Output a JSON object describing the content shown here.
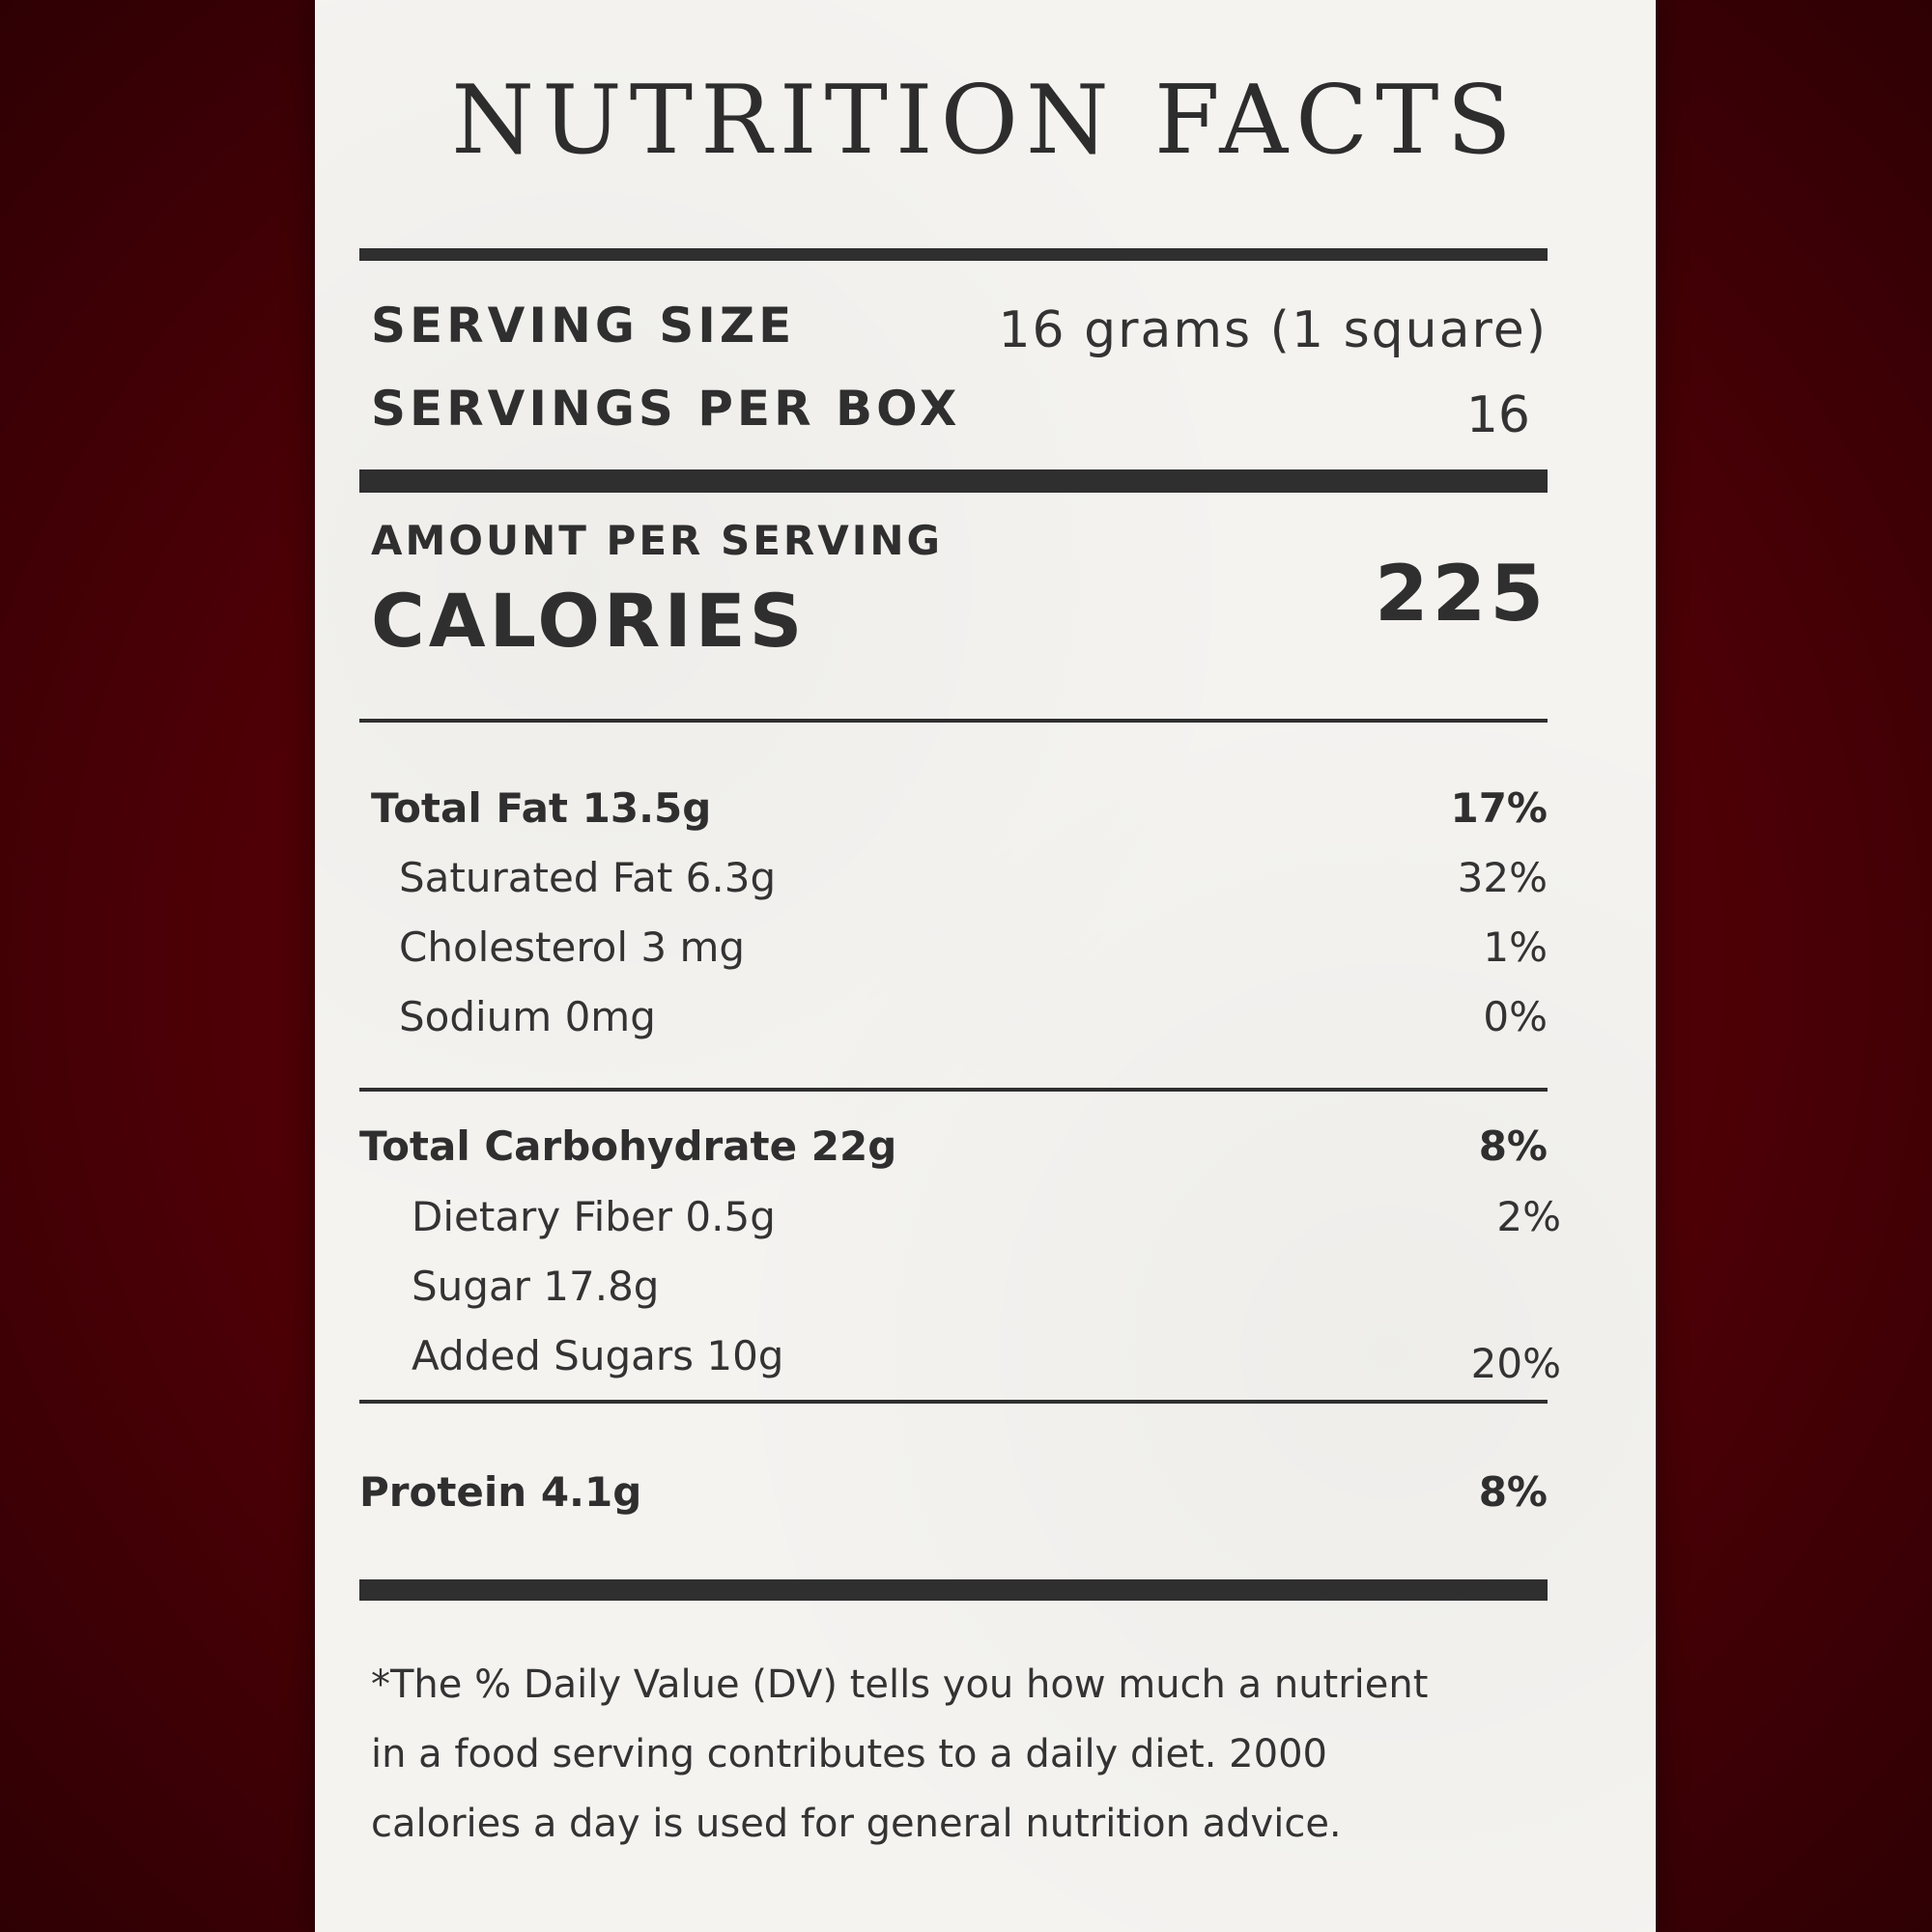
{
  "title": "NUTRITION FACTS",
  "serving": {
    "size_label": "SERVING SIZE",
    "size_value": "16 grams (1 square)",
    "per_box_label": "SERVINGS PER BOX",
    "per_box_value": "16"
  },
  "calories": {
    "amount_label": "AMOUNT PER SERVING",
    "label": "CALORIES",
    "value": "225"
  },
  "nutrients": {
    "total_fat": {
      "label": "Total Fat 13.5g",
      "dv": "17%"
    },
    "saturated_fat": {
      "label": "Saturated Fat 6.3g",
      "dv": "32%"
    },
    "cholesterol": {
      "label": "Cholesterol 3 mg",
      "dv": "1%"
    },
    "sodium": {
      "label": "Sodium 0mg",
      "dv": "0%"
    },
    "total_carb": {
      "label": "Total Carbohydrate 22g",
      "dv": "8%"
    },
    "fiber": {
      "label": "Dietary Fiber 0.5g",
      "dv": "2%"
    },
    "sugar": {
      "label": "Sugar 17.8g"
    },
    "added_sugars": {
      "label": "Added Sugars 10g",
      "dv": "20%"
    },
    "protein": {
      "label": "Protein 4.1g",
      "dv": "8%"
    }
  },
  "footnote": {
    "line1": "*The % Daily Value (DV) tells you how much a nutrient",
    "line2": "in a food serving contributes to a daily diet. 2000",
    "line3": "calories a day is used for general nutrition advice."
  }
}
